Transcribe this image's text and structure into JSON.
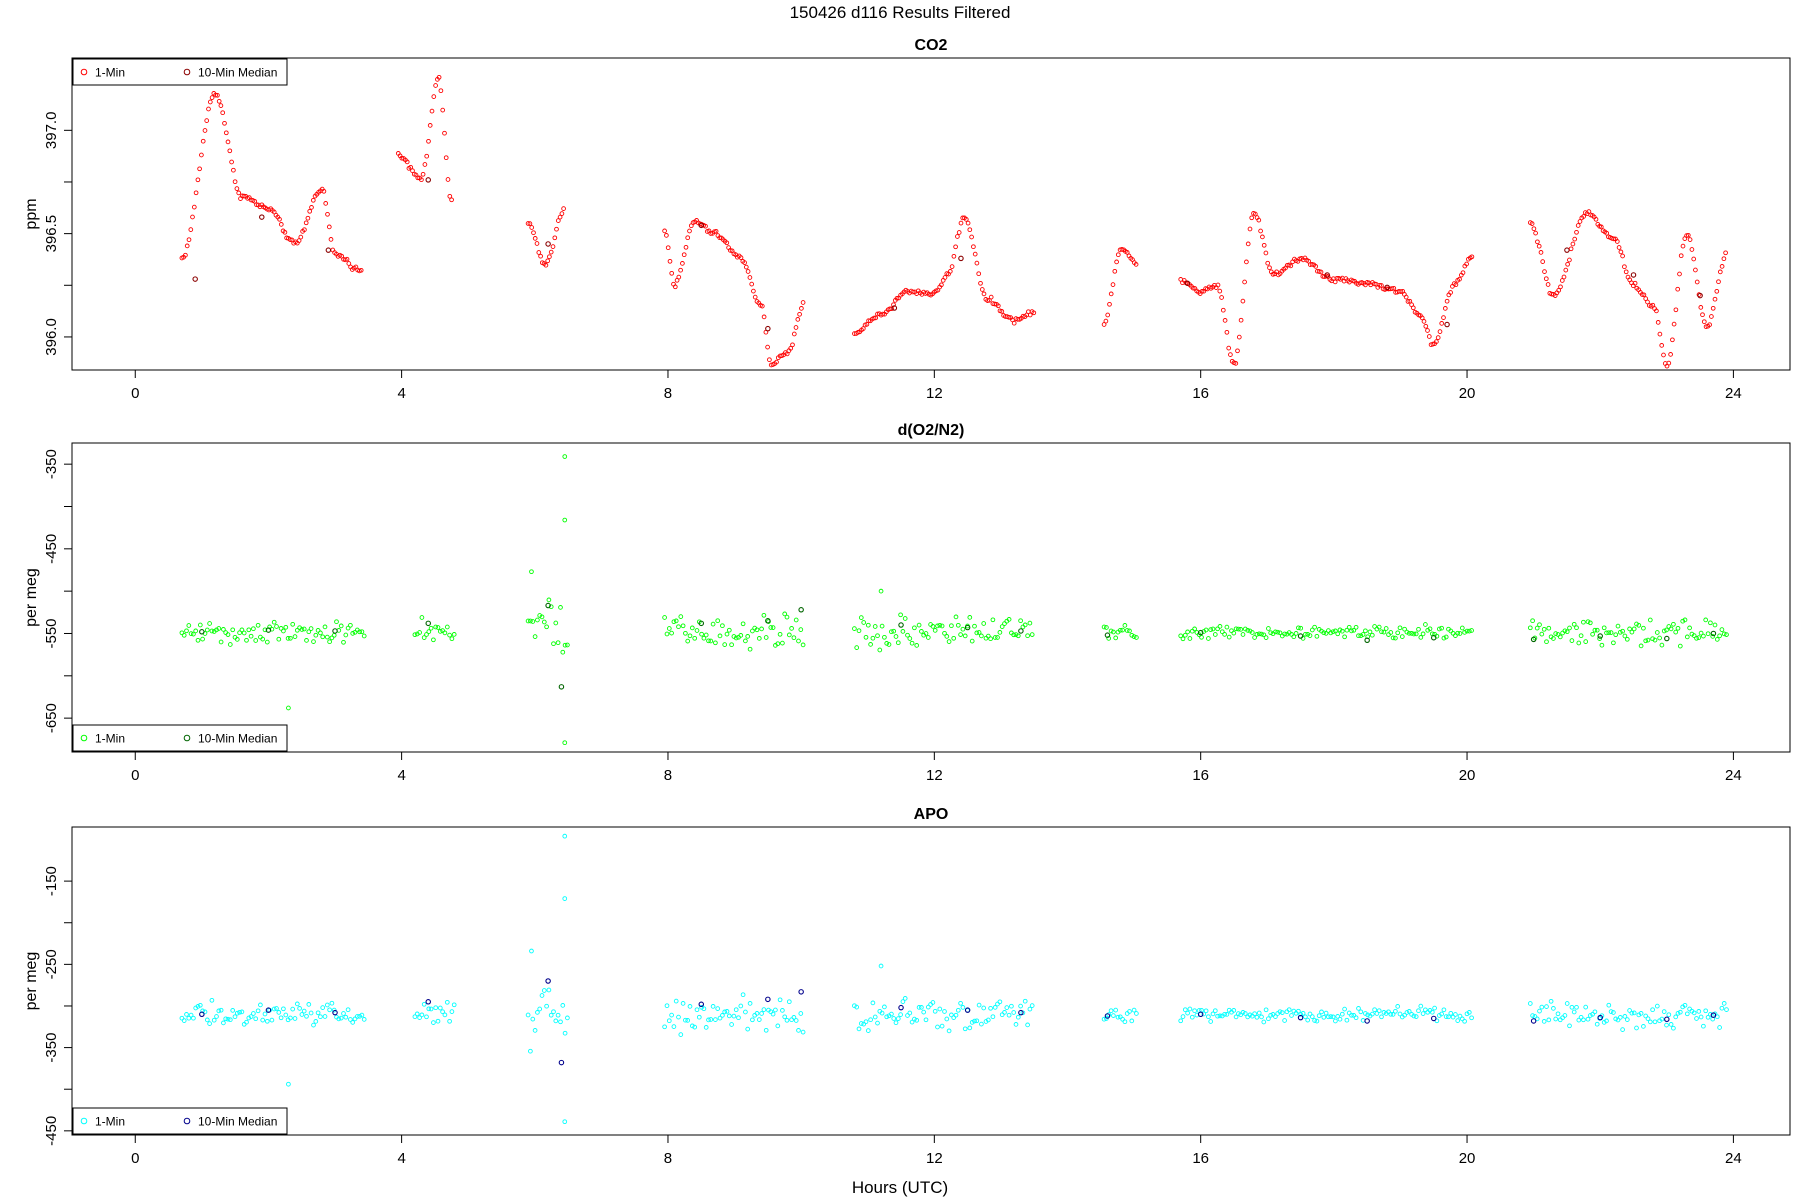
{
  "page_title": "150426   d116   Results Filtered",
  "xlabel": "Hours (UTC)",
  "chart_data": [
    {
      "type": "scatter",
      "title": "CO2",
      "ylabel": "ppm",
      "xlim": [
        -0.95,
        24.85
      ],
      "ylim": [
        395.84,
        397.35
      ],
      "xticks": [
        0,
        4,
        8,
        12,
        16,
        20,
        24
      ],
      "yticks": [
        396.0,
        396.5,
        397.0
      ],
      "ytick_labels": [
        "396.0",
        "396.5",
        "397.0"
      ],
      "legend_position": "top-left",
      "legend": [
        "1-Min",
        "10-Min Median"
      ],
      "colors": {
        "minute": "#ff0000",
        "median": "#8b0000"
      },
      "segments": [
        {
          "x": [
            0.7,
            1.2,
            1.6,
            2.0,
            2.4,
            2.8,
            3.0,
            3.4
          ],
          "y": [
            396.38,
            397.18,
            396.68,
            396.62,
            396.45,
            396.72,
            396.4,
            396.32
          ]
        },
        {
          "x": [
            3.95,
            4.3,
            4.55,
            4.75
          ],
          "y": [
            396.88,
            396.77,
            397.25,
            396.66
          ]
        },
        {
          "x": [
            5.9,
            6.15,
            6.45
          ],
          "y": [
            396.55,
            396.35,
            396.62
          ]
        },
        {
          "x": [
            7.95,
            8.1,
            8.4,
            8.7,
            9.1,
            9.4,
            9.55,
            9.8,
            10.05
          ],
          "y": [
            396.52,
            396.25,
            396.56,
            396.5,
            396.38,
            396.15,
            395.87,
            395.92,
            396.17
          ]
        },
        {
          "x": [
            10.8,
            11.2,
            11.6,
            12.0,
            12.2,
            12.45,
            12.8,
            13.2,
            13.5
          ],
          "y": [
            396.02,
            396.11,
            396.22,
            396.21,
            396.3,
            396.58,
            396.18,
            396.08,
            396.12
          ]
        },
        {
          "x": [
            14.55,
            14.8,
            15.05
          ],
          "y": [
            396.06,
            396.43,
            396.35
          ]
        },
        {
          "x": [
            15.7,
            16.0,
            16.25,
            16.5,
            16.8,
            17.1,
            17.5,
            18.0,
            18.5,
            19.0,
            19.3,
            19.5,
            19.8,
            20.1
          ],
          "y": [
            396.28,
            396.22,
            396.25,
            395.87,
            396.6,
            396.3,
            396.38,
            396.28,
            396.26,
            396.22,
            396.1,
            395.96,
            396.25,
            396.4
          ]
        },
        {
          "x": [
            20.95,
            21.3,
            21.8,
            22.2,
            22.5,
            22.8,
            23.0,
            23.3,
            23.6,
            23.9
          ],
          "y": [
            396.55,
            396.2,
            396.6,
            396.48,
            396.25,
            396.15,
            395.86,
            396.5,
            396.05,
            396.4
          ]
        }
      ],
      "medians": {
        "x": [
          0.9,
          1.9,
          2.9,
          4.4,
          6.2,
          8.5,
          9.5,
          11.4,
          12.4,
          15.8,
          17.9,
          18.8,
          19.7,
          21.5,
          22.5,
          23.5
        ],
        "y": [
          396.28,
          396.58,
          396.42,
          396.76,
          396.45,
          396.54,
          396.04,
          396.14,
          396.38,
          396.26,
          396.3,
          396.24,
          396.06,
          396.42,
          396.3,
          396.2
        ]
      }
    },
    {
      "type": "scatter",
      "title": "d(O2/N2)",
      "ylabel": "per meg",
      "xlim": [
        -0.95,
        24.85
      ],
      "ylim": [
        -690,
        -325
      ],
      "xticks": [
        0,
        4,
        8,
        12,
        16,
        20,
        24
      ],
      "yticks": [
        -650,
        -550,
        -450,
        -350
      ],
      "ytick_labels": [
        "-650",
        "-550",
        "-450",
        "-350"
      ],
      "legend_position": "bottom-left",
      "legend": [
        "1-Min",
        "10-Min Median"
      ],
      "colors": {
        "minute": "#00ff00",
        "median": "#006400"
      },
      "base": -548,
      "segments": [
        {
          "start": 0.7,
          "end": 3.45,
          "spread": 20
        },
        {
          "start": 4.2,
          "end": 4.8,
          "spread": 22
        },
        {
          "start": 5.9,
          "end": 6.5,
          "spread": 55
        },
        {
          "start": 7.95,
          "end": 10.05,
          "spread": 30
        },
        {
          "start": 10.8,
          "end": 13.5,
          "spread": 26
        },
        {
          "start": 14.55,
          "end": 15.05,
          "spread": 15
        },
        {
          "start": 15.7,
          "end": 20.1,
          "spread": 12
        },
        {
          "start": 20.95,
          "end": 23.9,
          "spread": 22
        }
      ],
      "outliers": {
        "x": [
          6.45,
          6.45,
          6.45,
          5.95,
          2.3,
          11.2
        ],
        "y": [
          -341,
          -416,
          -679,
          -477,
          -638,
          -500
        ]
      },
      "medians": {
        "x": [
          1.0,
          2.0,
          3.0,
          4.4,
          6.2,
          6.4,
          8.5,
          9.5,
          10.0,
          11.5,
          12.5,
          13.3,
          14.6,
          16.0,
          17.5,
          18.5,
          19.5,
          21.0,
          22.0,
          23.0,
          23.7
        ],
        "y": [
          -548,
          -546,
          -547,
          -538,
          -517,
          -613,
          -538,
          -535,
          -522,
          -540,
          -543,
          -547,
          -552,
          -549,
          -553,
          -558,
          -555,
          -557,
          -553,
          -556,
          -550
        ]
      }
    },
    {
      "type": "scatter",
      "title": "APO",
      "ylabel": "per meg",
      "xlim": [
        -0.95,
        24.85
      ],
      "ylim": [
        -455,
        -85
      ],
      "xticks": [
        0,
        4,
        8,
        12,
        16,
        20,
        24
      ],
      "yticks": [
        -450,
        -350,
        -250,
        -150
      ],
      "ytick_labels": [
        "-450",
        "-350",
        "-250",
        "-150"
      ],
      "legend_position": "bottom-left",
      "legend": [
        "1-Min",
        "10-Min Median"
      ],
      "colors": {
        "minute": "#00ffff",
        "median": "#00008b"
      },
      "base": -310,
      "segments": [
        {
          "start": 0.7,
          "end": 3.45,
          "spread": 20
        },
        {
          "start": 4.2,
          "end": 4.8,
          "spread": 22
        },
        {
          "start": 5.9,
          "end": 6.5,
          "spread": 55
        },
        {
          "start": 7.95,
          "end": 10.05,
          "spread": 30
        },
        {
          "start": 10.8,
          "end": 13.5,
          "spread": 26
        },
        {
          "start": 14.55,
          "end": 15.05,
          "spread": 15
        },
        {
          "start": 15.7,
          "end": 20.1,
          "spread": 12
        },
        {
          "start": 20.95,
          "end": 23.9,
          "spread": 22
        }
      ],
      "outliers": {
        "x": [
          6.45,
          6.45,
          6.45,
          5.95,
          2.3,
          11.2
        ],
        "y": [
          -96,
          -171,
          -439,
          -234,
          -394,
          -252
        ]
      },
      "medians": {
        "x": [
          1.0,
          2.0,
          3.0,
          4.4,
          6.2,
          6.4,
          8.5,
          9.5,
          10.0,
          11.5,
          12.5,
          13.3,
          14.6,
          16.0,
          17.5,
          18.5,
          19.5,
          21.0,
          22.0,
          23.0,
          23.7
        ],
        "y": [
          -310,
          -305,
          -308,
          -295,
          -270,
          -368,
          -298,
          -292,
          -283,
          -302,
          -305,
          -308,
          -312,
          -310,
          -314,
          -318,
          -315,
          -318,
          -314,
          -316,
          -311
        ]
      }
    }
  ]
}
